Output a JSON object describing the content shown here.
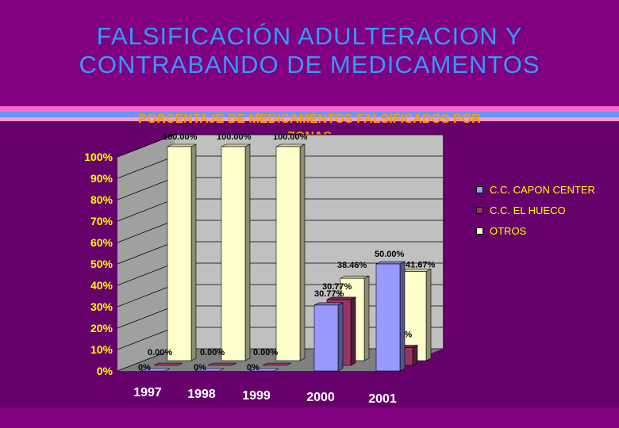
{
  "slide": {
    "title_line1": "FALSIFICACIÓN ADULTERACION Y",
    "title_line2": "CONTRABANDO DE MEDICAMENTOS"
  },
  "chart_data": {
    "type": "bar",
    "title_line1": "PORCENTAJE DE MEDICAMENTOS FALSIFICADOS POR",
    "title_line2": "ZONAS",
    "categories": [
      "1997",
      "1998",
      "1999",
      "2000",
      "2001"
    ],
    "series": [
      {
        "name": "C.C. CAPON CENTER",
        "color": "#9999ff",
        "values": [
          0,
          0,
          0,
          30.77,
          50.0
        ],
        "labels": [
          "0%",
          "0%",
          "0%",
          "30.77%",
          "50.00%"
        ]
      },
      {
        "name": "C.C. EL HUECO",
        "color": "#993366",
        "values": [
          0,
          0,
          0,
          30.77,
          8.33
        ],
        "labels": [
          "0.00%",
          "0.00%",
          "0.00%",
          "30.77%",
          "8.33%"
        ]
      },
      {
        "name": "OTROS",
        "color": "#ffffcc",
        "values": [
          100,
          100,
          100,
          38.46,
          41.67
        ],
        "labels": [
          "100.00%",
          "100.00%",
          "100.00%",
          "38.46%",
          "41.67%"
        ]
      }
    ],
    "yticks": [
      "0%",
      "10%",
      "20%",
      "30%",
      "40%",
      "50%",
      "60%",
      "70%",
      "80%",
      "90%",
      "100%"
    ],
    "ylim": [
      0,
      100
    ],
    "grid": true,
    "legend_position": "right"
  }
}
